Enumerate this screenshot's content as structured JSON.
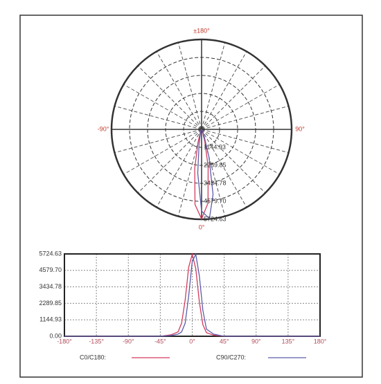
{
  "chart_data": [
    {
      "type": "polar",
      "thetaticks": [
        {
          "value": 180,
          "label": "±180°"
        },
        {
          "value": -90,
          "label": "-90°"
        },
        {
          "value": 90,
          "label": "90°"
        },
        {
          "value": 0,
          "label": "0°"
        }
      ],
      "rlim": [
        0,
        5724.63
      ],
      "rticks": [
        1144.93,
        2289.85,
        3434.78,
        {
          "value": 4579.7,
          "label": "4579.70"
        },
        5724.63
      ],
      "x": [
        -180,
        -90,
        -45,
        -30,
        -20,
        -15,
        -10,
        -5,
        0,
        5,
        10,
        15,
        20,
        30,
        45,
        90,
        180
      ],
      "series": [
        {
          "name": "C0/C180:",
          "color": "#d23a5e",
          "values": [
            0,
            0,
            0,
            100,
            300,
            900,
            2500,
            4800,
            5700,
            4700,
            2400,
            800,
            250,
            80,
            0,
            0,
            0
          ]
        },
        {
          "name": "C90/C270:",
          "color": "#5b5ca8",
          "values": [
            0,
            0,
            0,
            50,
            150,
            300,
            900,
            2800,
            5200,
            5700,
            4200,
            1800,
            500,
            150,
            0,
            0,
            0
          ]
        }
      ]
    },
    {
      "type": "line",
      "xlim": [
        -180,
        180
      ],
      "xticks": [
        {
          "value": -180,
          "label": "-180°"
        },
        {
          "value": -135,
          "label": "-135°"
        },
        {
          "value": -90,
          "label": "-90°"
        },
        {
          "value": -45,
          "label": "-45°"
        },
        {
          "value": 0,
          "label": "0°"
        },
        {
          "value": 45,
          "label": "45°"
        },
        {
          "value": 90,
          "label": "90°"
        },
        {
          "value": 135,
          "label": "135°"
        },
        {
          "value": 180,
          "label": "180°"
        }
      ],
      "ylim": [
        0,
        5724.63
      ],
      "yticks": [
        {
          "value": 0,
          "label": "0.00"
        },
        1144.93,
        2289.85,
        3434.78,
        {
          "value": 4579.7,
          "label": "4579.70"
        },
        5724.63
      ],
      "grid": true,
      "x": [
        -180,
        -90,
        -45,
        -30,
        -20,
        -15,
        -10,
        -5,
        0,
        5,
        10,
        15,
        20,
        30,
        45,
        90,
        180
      ],
      "series": [
        {
          "name": "C0/C180:",
          "color": "#d23a5e",
          "values": [
            0,
            0,
            0,
            100,
            300,
            900,
            2500,
            4800,
            5700,
            4700,
            2400,
            800,
            250,
            80,
            0,
            0,
            0
          ]
        },
        {
          "name": "C90/C270:",
          "color": "#5b5ca8",
          "values": [
            0,
            0,
            0,
            50,
            150,
            300,
            900,
            2800,
            5200,
            5700,
            4200,
            1800,
            500,
            150,
            0,
            0,
            0
          ]
        }
      ]
    }
  ]
}
